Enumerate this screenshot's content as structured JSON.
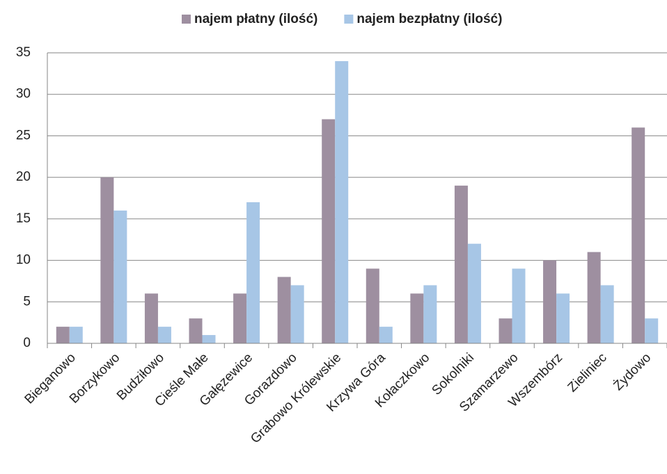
{
  "chart_data": {
    "type": "bar",
    "categories": [
      "Bieganowo",
      "Borzykowo",
      "Budziłowo",
      "Cieśle Małe",
      "Gałęzewice",
      "Gorazdowo",
      "Grabowo Królewskie",
      "Krzywa Góra",
      "Kołaczkowo",
      "Sokolniki",
      "Szamarzewo",
      "Wszembórz",
      "Zieliniec",
      "Żydowo"
    ],
    "series": [
      {
        "name": "najem płatny (ilość)",
        "color": "#9e8fa0",
        "values": [
          2,
          20,
          6,
          3,
          6,
          8,
          27,
          9,
          6,
          19,
          3,
          10,
          11,
          26
        ]
      },
      {
        "name": "najem bezpłatny (ilość)",
        "color": "#a7c6e6",
        "values": [
          2,
          16,
          2,
          1,
          17,
          7,
          34,
          2,
          7,
          12,
          9,
          6,
          7,
          3
        ]
      }
    ],
    "ylim": [
      0,
      35
    ],
    "yticks": [
      0,
      5,
      10,
      15,
      20,
      25,
      30,
      35
    ],
    "grid": true,
    "legend": "top"
  }
}
